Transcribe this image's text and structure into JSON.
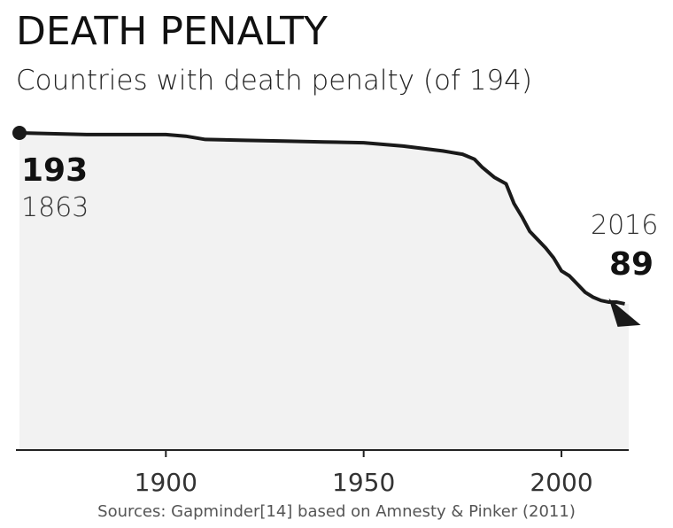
{
  "title": "DEATH PENALTY",
  "subtitle": "Countries with death penalty (of 194)",
  "source": "Sources: Gapminder[14] based on Amnesty & Pinker (2011)",
  "start_point": {
    "value_label": "193",
    "year_label": "1863"
  },
  "end_point": {
    "value_label": "89",
    "year_label": "2016"
  },
  "colors": {
    "line": "#1a1a1a",
    "area": "#f2f2f2",
    "axis": "#222222",
    "text": "#111111"
  },
  "chart_data": {
    "type": "area",
    "title": "DEATH PENALTY",
    "subtitle": "Countries with death penalty (of 194)",
    "xlabel": "",
    "ylabel": "",
    "xlim": [
      1863,
      2017
    ],
    "ylim": [
      0,
      194
    ],
    "xticks": [
      1900,
      1950,
      2000
    ],
    "grid": false,
    "series": [
      {
        "x": [
          1863,
          1880,
          1900,
          1905,
          1910,
          1920,
          1930,
          1940,
          1950,
          1955,
          1960,
          1965,
          1970,
          1975,
          1978,
          1980,
          1983,
          1986,
          1988,
          1990,
          1992,
          1994,
          1996,
          1998,
          2000,
          2002,
          2004,
          2006,
          2008,
          2010,
          2012,
          2014,
          2016
        ],
        "y": [
          193,
          192,
          192,
          191,
          189,
          188.5,
          188,
          187.5,
          187,
          186,
          185,
          183.5,
          182,
          180,
          177,
          172,
          166,
          162,
          150,
          142,
          133,
          128,
          123,
          117,
          109,
          106,
          101,
          96,
          93,
          91,
          90,
          90,
          89
        ]
      }
    ]
  }
}
